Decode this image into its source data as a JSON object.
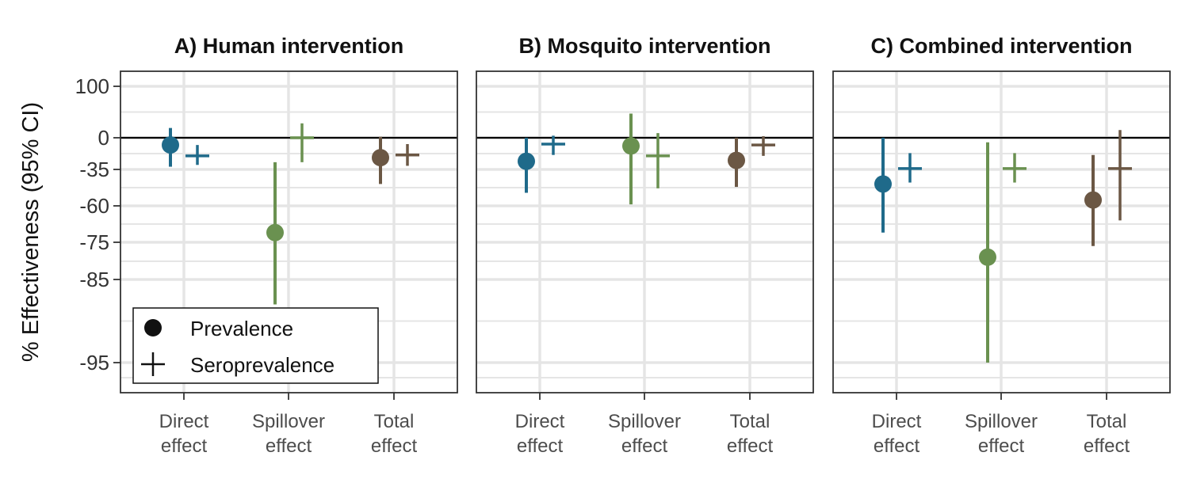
{
  "colors": {
    "direct": "#1f6a8a",
    "spillover": "#6a9150",
    "total": "#6b5744",
    "grid": "#e5e5e5",
    "axis": "#333333"
  },
  "chart_data": {
    "type": "scatter",
    "ylabel": "% Effectiveness (95% CI)",
    "ytick_labels": [
      "100",
      "0",
      "-35",
      "-60",
      "-75",
      "-85",
      "-95"
    ],
    "ylim": [
      "100 (top)",
      "-95 (bottom)"
    ],
    "y_scale": "nonlinear (tick spacing as printed)",
    "categories": [
      "Direct\neffect",
      "Spillover\neffect",
      "Total\neffect"
    ],
    "legend": {
      "placement": "bottom-left of panel A",
      "entries": [
        {
          "label": "Prevalence",
          "symbol": "circle"
        },
        {
          "label": "Seroprevalence",
          "symbol": "cross"
        }
      ]
    },
    "grid": true,
    "reference_line": 0,
    "panels": [
      {
        "title": "A) Human intervention",
        "series": [
          {
            "name": "Prevalence",
            "points": [
              {
                "category": "Direct\neffect",
                "estimate": -8,
                "lower": -32,
                "upper": 19
              },
              {
                "category": "Spillover\neffect",
                "estimate": -71,
                "lower": -88,
                "upper": -27
              },
              {
                "category": "Total\neffect",
                "estimate": -22,
                "lower": -45,
                "upper": 2
              }
            ]
          },
          {
            "name": "Seroprevalence",
            "points": [
              {
                "category": "Direct\neffect",
                "estimate": -20,
                "lower": -30,
                "upper": -8
              },
              {
                "category": "Spillover\neffect",
                "estimate": 0,
                "lower": -27,
                "upper": 28
              },
              {
                "category": "Total\neffect",
                "estimate": -19,
                "lower": -31,
                "upper": -7
              }
            ]
          }
        ]
      },
      {
        "title": "B) Mosquito intervention",
        "series": [
          {
            "name": "Prevalence",
            "points": [
              {
                "category": "Direct\neffect",
                "estimate": -26,
                "lower": -51,
                "upper": 0
              },
              {
                "category": "Spillover\neffect",
                "estimate": -9,
                "lower": -59,
                "upper": 47
              },
              {
                "category": "Total\neffect",
                "estimate": -25,
                "lower": -47,
                "upper": 0
              }
            ]
          },
          {
            "name": "Seroprevalence",
            "points": [
              {
                "category": "Direct\neffect",
                "estimate": -7,
                "lower": -19,
                "upper": 4
              },
              {
                "category": "Spillover\neffect",
                "estimate": -20,
                "lower": -48,
                "upper": 9
              },
              {
                "category": "Total\neffect",
                "estimate": -8,
                "lower": -20,
                "upper": 3
              }
            ]
          }
        ]
      },
      {
        "title": "C) Combined intervention",
        "series": [
          {
            "name": "Prevalence",
            "points": [
              {
                "category": "Direct\neffect",
                "estimate": -45,
                "lower": -71,
                "upper": 0
              },
              {
                "category": "Spillover\neffect",
                "estimate": -79,
                "lower": -95,
                "upper": -5
              },
              {
                "category": "Total\neffect",
                "estimate": -56,
                "lower": -76,
                "upper": -19
              }
            ]
          },
          {
            "name": "Seroprevalence",
            "points": [
              {
                "category": "Direct\neffect",
                "estimate": -34,
                "lower": -44,
                "upper": -17
              },
              {
                "category": "Spillover\neffect",
                "estimate": -34,
                "lower": -44,
                "upper": -17
              },
              {
                "category": "Total\neffect",
                "estimate": -34,
                "lower": -66,
                "upper": 15
              }
            ]
          }
        ]
      }
    ]
  }
}
